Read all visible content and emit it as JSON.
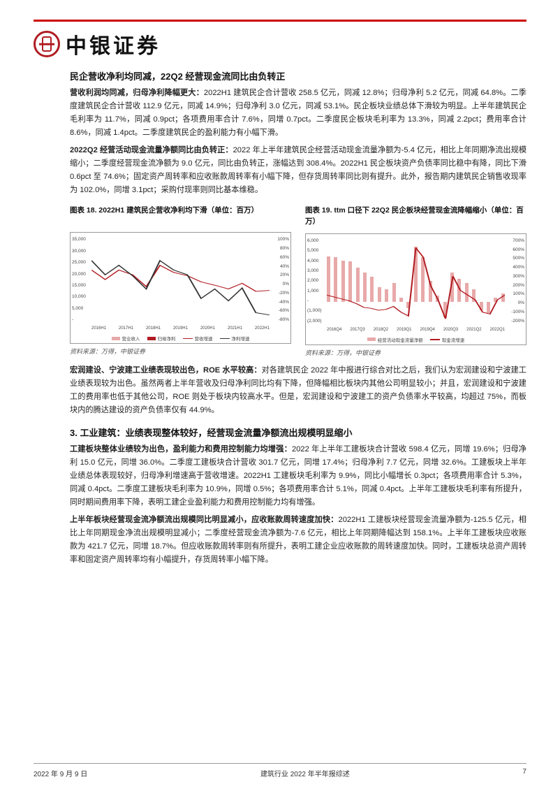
{
  "brand": "中银证券",
  "section1": {
    "title": "民企营收净利均同减，22Q2 经营现金流同比由负转正",
    "p1_bold": "营收利润均同减，归母净利降幅更大：",
    "p1": "2022H1 建筑民企合计营收 258.5 亿元，同减 12.8%；归母净利 5.2 亿元，同减 64.8%。二季度建筑民企合计营收 112.9 亿元，同减 14.9%；归母净利 3.0 亿元，同减 53.1%。民企板块业绩总体下滑较为明显。上半年建筑民企毛利率为 11.7%，同减 0.9pct；各项费用率合计 7.6%，同增 0.7pct。二季度民企板块毛利率为 13.3%，同减 2.2pct；费用率合计 8.6%，同减 1.4pct。二季度建筑民企的盈利能力有小幅下滑。",
    "p2_bold": "2022Q2 经营活动现金流量净额同比由负转正：",
    "p2": "2022 年上半年建筑民企经营活动现金流量净额为-5.4 亿元，相比上年同期净流出规模缩小；二季度经营现金流净额为 9.0 亿元，同比由负转正，涨幅达到 308.4%。2022H1 民企板块资产负债率同比稳中有降，同比下滑 0.6pct 至 74.6%；固定资产周转率和应收账款周转率有小幅下降，但存货周转率同比则有提升。此外，报告期内建筑民企销售收现率为 102.0%，同增 3.1pct；采购付现率则同比基本维稳。"
  },
  "chart1": {
    "caption": "图表 18. 2022H1 建筑民企营收净利均下滑（单位：百万）",
    "y_left": [
      "35,000",
      "30,000",
      "25,000",
      "20,000",
      "15,000",
      "10,000",
      "5,000",
      "-"
    ],
    "y_right": [
      "100%",
      "80%",
      "60%",
      "40%",
      "20%",
      "0%",
      "-20%",
      "-40%",
      "-60%",
      "-80%"
    ],
    "x": [
      "2016H1",
      "2017H1",
      "2018H1",
      "2019H1",
      "2020H1",
      "2021H1",
      "2022H1"
    ],
    "series_labels": [
      "营业收入",
      "归母净利",
      "营收增速",
      "净利增速"
    ],
    "bar_colors": [
      "#e8a9a9",
      "#b01c22"
    ],
    "line_colors": [
      "#b01c22",
      "#333333"
    ],
    "revenue": [
      22500,
      30000,
      25500,
      28500,
      30000,
      32000,
      28000,
      29500,
      26000,
      28500,
      27500,
      30000,
      25500,
      25800
    ],
    "profit": [
      1000,
      1400,
      1200,
      1600,
      1500,
      1800,
      1600,
      1800,
      1100,
      1400,
      900,
      1500,
      700,
      520
    ],
    "rev_growth": [
      30,
      10,
      30,
      20,
      -5,
      40,
      25,
      18,
      5,
      -2,
      -10,
      2,
      -15,
      -13
    ],
    "profit_growth": [
      50,
      20,
      40,
      18,
      -10,
      50,
      30,
      20,
      -30,
      -10,
      -35,
      -8,
      -60,
      -65
    ]
  },
  "chart2": {
    "caption": "图表 19. ttm 口径下 22Q2 民企板块经营现金流降幅缩小（单位：百万）",
    "y_left": [
      "6,000",
      "5,000",
      "4,000",
      "3,000",
      "2,000",
      "1,000",
      "-",
      "(1,000)",
      "(2,000)"
    ],
    "y_right": [
      "700%",
      "600%",
      "500%",
      "400%",
      "300%",
      "200%",
      "100%",
      "0%",
      "-100%",
      "-200%"
    ],
    "x": [
      "2016Q4",
      "2017Q3",
      "2018Q2",
      "2019Q1",
      "2019Q4",
      "2020Q3",
      "2021Q2",
      "2022Q1"
    ],
    "series_labels": [
      "经营活动现金流量净额",
      "现金流增速"
    ],
    "bar_color": "#e8a9a9",
    "line_color": "#b01c22",
    "cashflow": [
      4300,
      4200,
      3900,
      3800,
      3200,
      2800,
      2400,
      1400,
      1200,
      1800,
      400,
      -600,
      5200,
      4200,
      2000,
      600,
      -1400,
      2800,
      2200,
      1800,
      1200,
      -800,
      -1000,
      400,
      800
    ],
    "growth": [
      100,
      80,
      60,
      40,
      10,
      -30,
      -40,
      -60,
      -50,
      -20,
      -80,
      -120,
      600,
      500,
      200,
      50,
      -150,
      300,
      150,
      100,
      50,
      -80,
      -100,
      50,
      100
    ]
  },
  "source_text": "资料来源：万得，中银证券",
  "section2": {
    "p_bold": "宏润建设、宁波建工业绩表现较出色，ROE 水平较高：",
    "p": "对各建筑民企 2022 年中报进行综合对比之后，我们认为宏润建设和宁波建工业绩表现较为出色。虽然两者上半年营收及归母净利同比均有下降，但降幅相比板块内其他公司明显较小；并且，宏润建设和宁波建工的费用率也低于其他公司，ROE 则处于板块内较高水平。但是，宏润建设和宁波建工的资产负债率水平较高，均超过 75%，而板块内的腾达建设的资产负债率仅有 44.9%。"
  },
  "section3": {
    "num": "3.",
    "title": "工业建筑：业绩表现整体较好，经营现金流量净额流出规模明显缩小",
    "p1_bold": "工建板块整体业绩较为出色，盈利能力和费用控制能力均增强：",
    "p1": "2022 年上半年工建板块合计营收 598.4 亿元，同增 19.6%；归母净利 15.0 亿元，同增 36.0%。二季度工建板块合计营收 301.7 亿元，同增 17.4%；归母净利 7.7 亿元，同增 32.6%。工建板块上半年业绩总体表现较好，归母净利增速高于营收增速。2022H1 工建板块毛利率为 9.9%，同比小幅增长 0.3pct；各项费用率合计 5.3%，同减 0.4pct。二季度工建板块毛利率为 10.9%，同增 0.5%；各项费用率合计 5.1%，同减 0.4pct。上半年工建板块毛利率有所提升，同时期间费用率下降，表明工建企业盈利能力和费用控制能力均有增强。",
    "p2_bold": "上半年板块经营现金流净额流出规模同比明显减小，应收账款周转速度加快：",
    "p2": "2022H1 工建板块经营现金流量净额为-125.5 亿元，相比上年同期现金净流出规模明显减小；二季度经营现金流净额为-7.6 亿元，相比上年同期降幅达到 158.1%。上半年工建板块应收账款为 421.7 亿元，同增 18.7%。但应收账款周转率则有所提升，表明工建企业应收账款的周转速度加快。同时，工建板块总资产周转率和固定资产周转率均有小幅提升，存货周转率小幅下降。"
  },
  "footer": {
    "date": "2022 年 9 月 9 日",
    "title": "建筑行业 2022 年半年报综述",
    "page": "7"
  }
}
